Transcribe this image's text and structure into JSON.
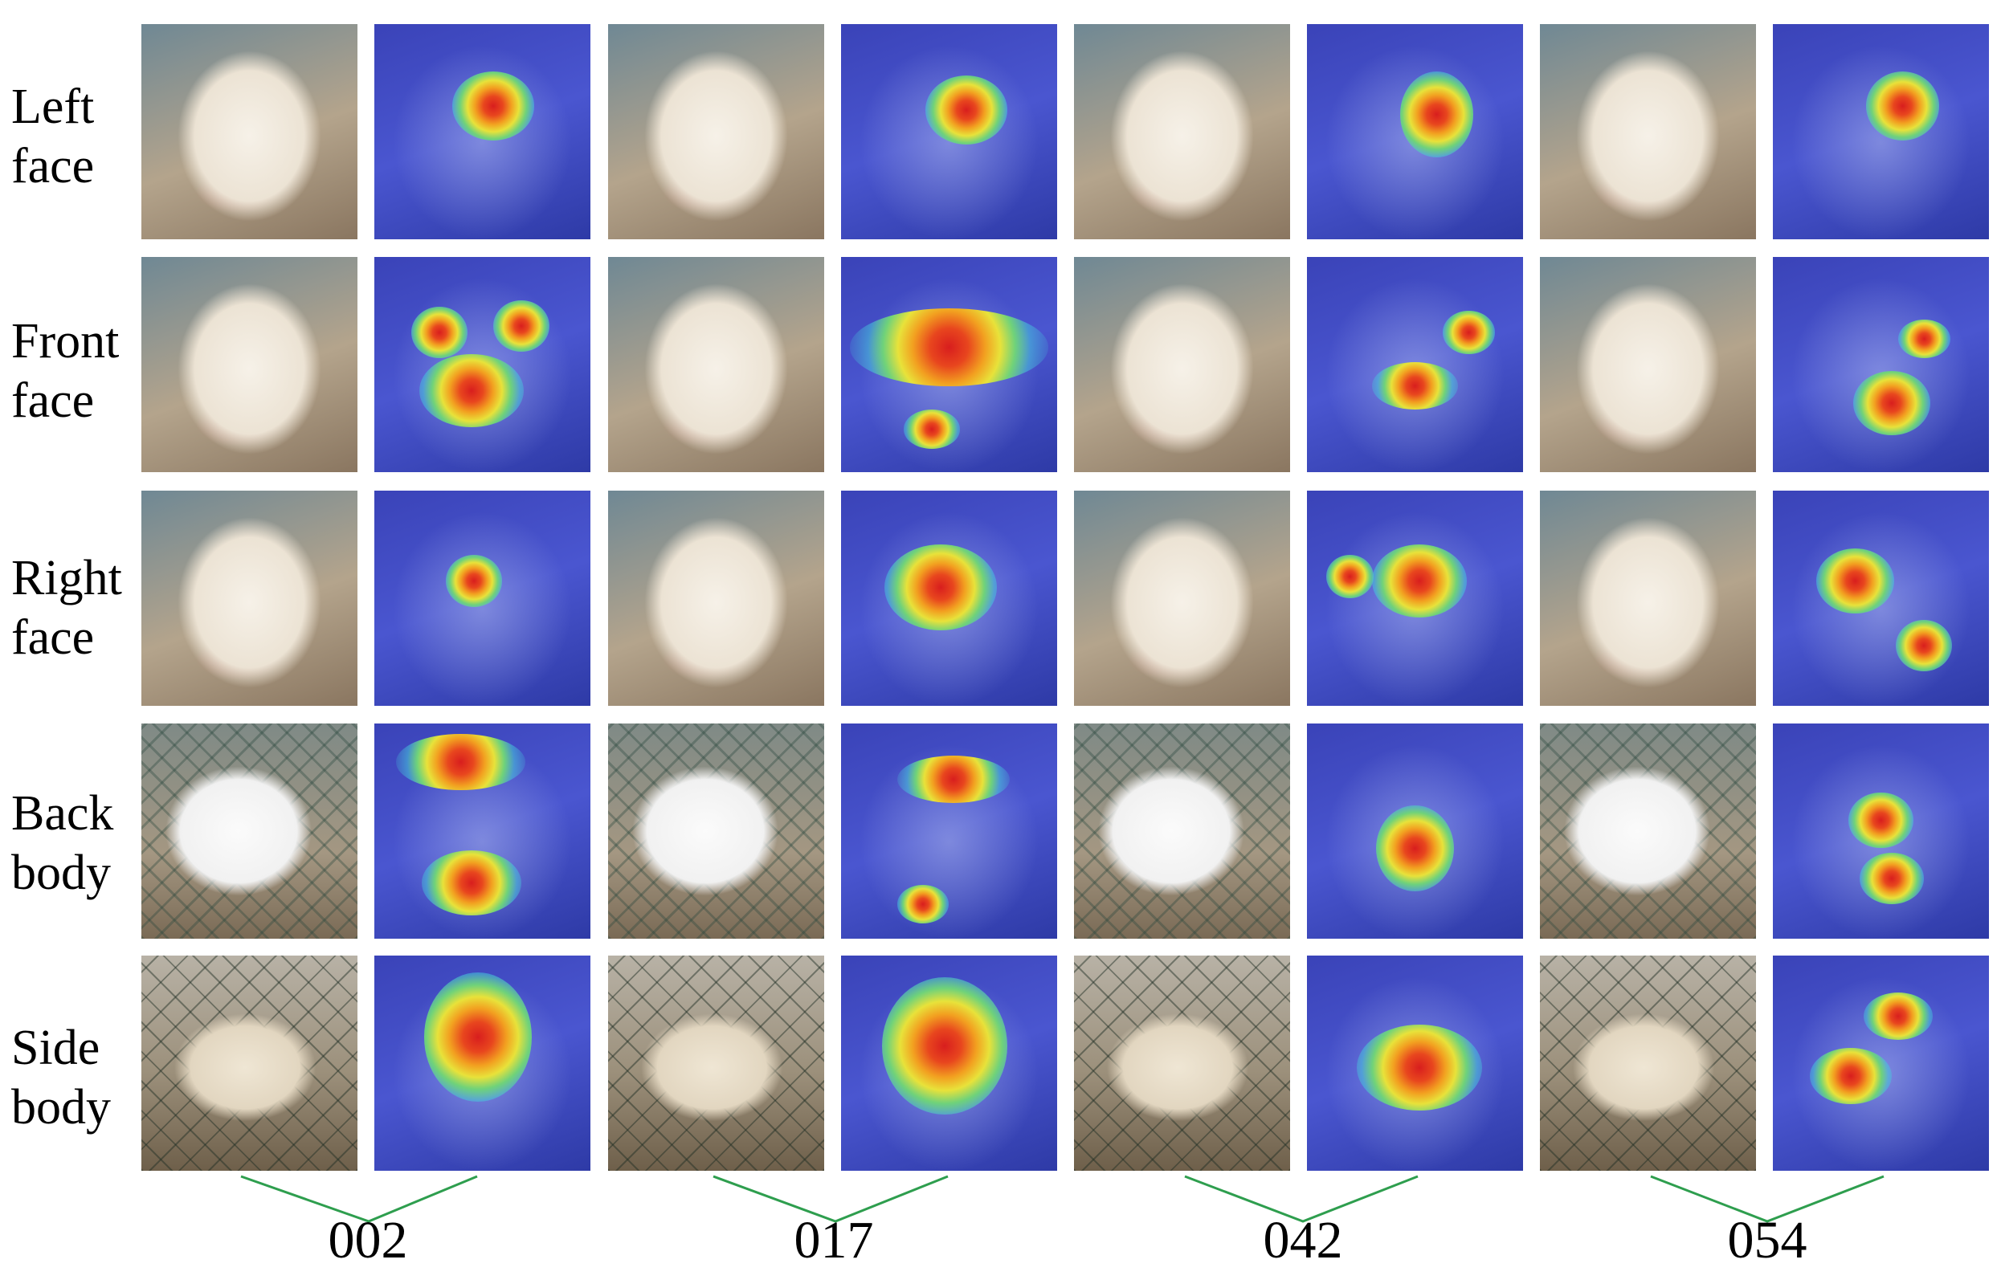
{
  "rows": [
    {
      "line1": "Left",
      "line2": "face"
    },
    {
      "line1": "Front",
      "line2": "face"
    },
    {
      "line1": "Right",
      "line2": "face"
    },
    {
      "line1": "Back",
      "line2": "body"
    },
    {
      "line1": "Side",
      "line2": "body"
    }
  ],
  "groups": [
    {
      "id": "002"
    },
    {
      "id": "017"
    },
    {
      "id": "042"
    },
    {
      "id": "054"
    }
  ],
  "colors": {
    "bracket": "#2e9e4e",
    "heatmap_base": "#3a43b8",
    "heatmap_hot": "#d81e1e"
  }
}
